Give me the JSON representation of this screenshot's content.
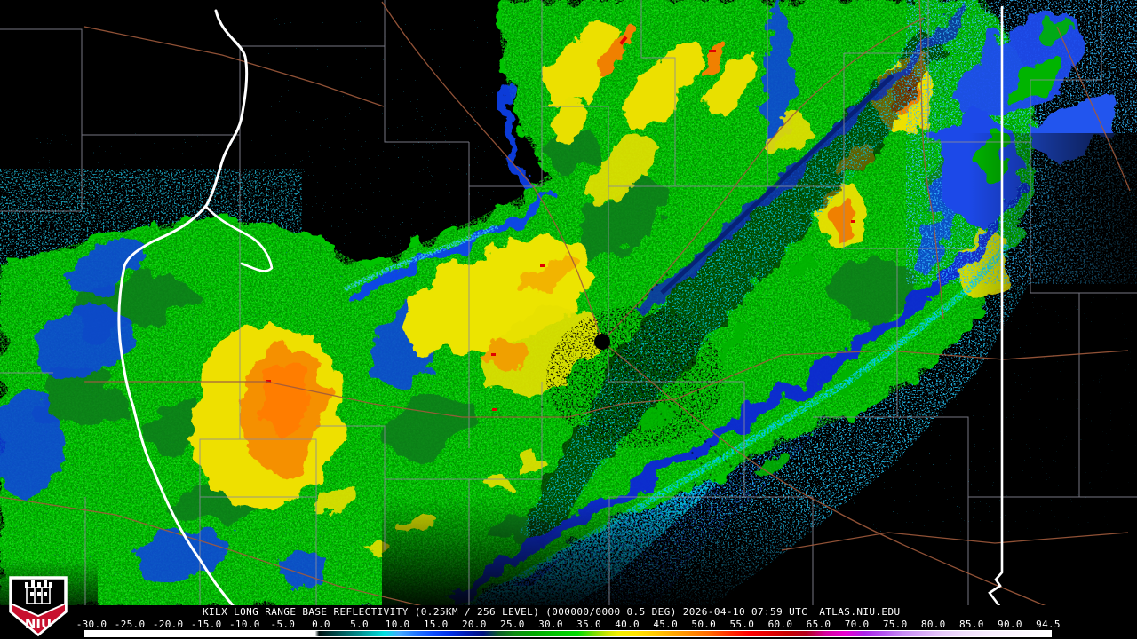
{
  "footer": {
    "product_line": "KILX LONG RANGE BASE REFLECTIVITY (0.25KM / 256 LEVEL) (000000/0000 0.5 DEG) 2026-04-10 07:59 UTC",
    "site": "ATLAS.NIU.EDU"
  },
  "logo": {
    "text": "NIU",
    "shield_red": "#c8102e",
    "shield_black": "#000000",
    "outline": "#ffffff"
  },
  "colorbar": {
    "tick_labels": [
      "-30.0",
      "-25.0",
      "-20.0",
      "-15.0",
      "-10.0",
      "-5.0",
      "0.0",
      "5.0",
      "10.0",
      "15.0",
      "20.0",
      "25.0",
      "30.0",
      "35.0",
      "40.0",
      "45.0",
      "50.0",
      "55.0",
      "60.0",
      "65.0",
      "70.0",
      "75.0",
      "80.0",
      "85.0",
      "90.0",
      "94.5"
    ],
    "gradient_stops": [
      [
        0.0,
        "#ffffff"
      ],
      [
        0.238,
        "#ffffff"
      ],
      [
        0.242,
        "#001111"
      ],
      [
        0.255,
        "#003b3b"
      ],
      [
        0.27,
        "#006666"
      ],
      [
        0.285,
        "#009090"
      ],
      [
        0.298,
        "#00bcbc"
      ],
      [
        0.31,
        "#00e0e0"
      ],
      [
        0.325,
        "#44aaff"
      ],
      [
        0.342,
        "#2277ff"
      ],
      [
        0.36,
        "#0d4dff"
      ],
      [
        0.378,
        "#0030e8"
      ],
      [
        0.395,
        "#001cb4"
      ],
      [
        0.412,
        "#001080"
      ],
      [
        0.428,
        "#0d5c28"
      ],
      [
        0.445,
        "#0e8c12"
      ],
      [
        0.465,
        "#00a800"
      ],
      [
        0.487,
        "#00c300"
      ],
      [
        0.51,
        "#00da00"
      ],
      [
        0.528,
        "#7ddd00"
      ],
      [
        0.54,
        "#c8e400"
      ],
      [
        0.552,
        "#f2ef00"
      ],
      [
        0.57,
        "#ffe400"
      ],
      [
        0.59,
        "#ffc800"
      ],
      [
        0.607,
        "#ffaa00"
      ],
      [
        0.625,
        "#ff8c00"
      ],
      [
        0.647,
        "#ff6600"
      ],
      [
        0.665,
        "#ff3300"
      ],
      [
        0.687,
        "#ff0000"
      ],
      [
        0.707,
        "#e60000"
      ],
      [
        0.727,
        "#c80000"
      ],
      [
        0.747,
        "#b4001e"
      ],
      [
        0.767,
        "#d4009e"
      ],
      [
        0.787,
        "#e800d0"
      ],
      [
        0.807,
        "#aa22e8"
      ],
      [
        0.827,
        "#b455f0"
      ],
      [
        0.847,
        "#c88cf5"
      ],
      [
        0.867,
        "#d8aaf8"
      ],
      [
        0.887,
        "#e6c8fa"
      ],
      [
        0.91,
        "#f0defc"
      ],
      [
        0.94,
        "#f8eefe"
      ],
      [
        1.0,
        "#ffffff"
      ]
    ]
  },
  "map_colors": {
    "background": "#000000",
    "county_line": "#8b8b99",
    "road": "#a05a3c",
    "state_border": "#ffffff",
    "light_precip_cyan": "#00c8e8",
    "moderate_precip_green": "#00c400",
    "heavy_precip_yellow": "#ece000",
    "intense_precip_orange": "#f08000"
  }
}
